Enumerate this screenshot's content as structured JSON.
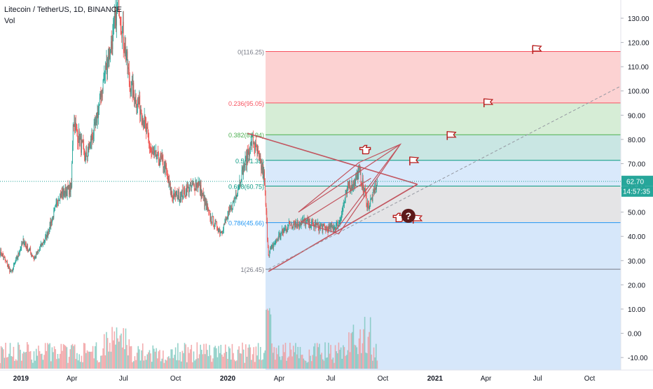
{
  "header": {
    "symbol": "Litecoin / TetherUS, 1D, BINANCE",
    "volume_label": "Vol"
  },
  "price_scale": {
    "ticks": [
      130,
      120,
      110,
      100,
      90,
      80,
      70,
      60,
      50,
      40,
      30,
      20,
      10,
      0,
      -10
    ],
    "tick_labels": [
      "130.00",
      "120.00",
      "110.00",
      "100.00",
      "90.00",
      "80.00",
      "70.00",
      "60.00",
      "50.00",
      "40.00",
      "30.00",
      "20.00",
      "10.00",
      "0.00",
      "-10.00"
    ],
    "last_price": "62.70",
    "countdown": "14:57:35",
    "last_price_color": "#26a69a",
    "countdown_color": "#26a69a"
  },
  "time_scale": {
    "labels": [
      "2019",
      "Apr",
      "Jul",
      "Oct",
      "2020",
      "Apr",
      "Jul",
      "Oct",
      "2021",
      "Apr",
      "Jul",
      "Oct"
    ],
    "bold": [
      true,
      false,
      false,
      false,
      true,
      false,
      false,
      false,
      true,
      false,
      false,
      false
    ]
  },
  "fib": {
    "levels": [
      {
        "ratio": 0,
        "price": 116.25,
        "label": "0(116.25)",
        "line": "#f7525f",
        "label_color": "#787b86"
      },
      {
        "ratio": 0.236,
        "price": 95.05,
        "label": "0.236(95.05)",
        "line": "#f7525f",
        "label_color": "#f7525f"
      },
      {
        "ratio": 0.382,
        "price": 81.94,
        "label": "0.382(81.94)",
        "line": "#4caf50",
        "label_color": "#4caf50"
      },
      {
        "ratio": 0.5,
        "price": 71.35,
        "label": "0.5(71.35)",
        "line": "#089981",
        "label_color": "#089981"
      },
      {
        "ratio": 0.618,
        "price": 60.75,
        "label": "0.618(60.75)",
        "line": "#089981",
        "label_color": "#089981"
      },
      {
        "ratio": 0.786,
        "price": 45.66,
        "label": "0.786(45.66)",
        "line": "#2196f3",
        "label_color": "#2196f3"
      },
      {
        "ratio": 1,
        "price": 26.45,
        "label": "1(26.45)",
        "line": "#787b86",
        "label_color": "#787b86"
      }
    ],
    "zone_colors": [
      "#fcd2d2",
      "#d6edd6",
      "#c9e6e3",
      "#d9e9fb",
      "#e4e4e6",
      "#d6e7fa"
    ]
  },
  "chart_data": {
    "type": "candlestick",
    "title": "Litecoin / TetherUS, 1D, BINANCE",
    "xlabel": "",
    "ylabel": "",
    "ylim": [
      -15,
      137
    ],
    "x_range": [
      "2018-11-25",
      "2021-11-25"
    ],
    "grid": false,
    "price_path": [
      [
        "2018-11-25",
        34
      ],
      [
        "2018-12-15",
        25
      ],
      [
        "2019-01-05",
        38
      ],
      [
        "2019-01-25",
        31
      ],
      [
        "2019-02-15",
        40
      ],
      [
        "2019-03-10",
        57
      ],
      [
        "2019-03-31",
        60
      ],
      [
        "2019-04-03",
        88
      ],
      [
        "2019-04-25",
        72
      ],
      [
        "2019-05-12",
        85
      ],
      [
        "2019-05-31",
        110
      ],
      [
        "2019-06-12",
        122
      ],
      [
        "2019-06-22",
        138
      ],
      [
        "2019-07-02",
        120
      ],
      [
        "2019-07-12",
        103
      ],
      [
        "2019-07-31",
        93
      ],
      [
        "2019-08-20",
        74
      ],
      [
        "2019-09-10",
        70
      ],
      [
        "2019-09-24",
        57
      ],
      [
        "2019-10-10",
        57
      ],
      [
        "2019-10-25",
        60
      ],
      [
        "2019-11-10",
        62
      ],
      [
        "2019-11-30",
        48
      ],
      [
        "2019-12-20",
        42
      ],
      [
        "2020-01-10",
        53
      ],
      [
        "2020-01-31",
        70
      ],
      [
        "2020-02-14",
        80
      ],
      [
        "2020-03-05",
        65
      ],
      [
        "2020-03-13",
        33
      ],
      [
        "2020-03-31",
        40
      ],
      [
        "2020-04-20",
        45
      ],
      [
        "2020-05-15",
        46
      ],
      [
        "2020-06-10",
        44
      ],
      [
        "2020-06-30",
        43
      ],
      [
        "2020-07-15",
        45
      ],
      [
        "2020-07-31",
        60
      ],
      [
        "2020-08-10",
        62
      ],
      [
        "2020-08-20",
        67
      ],
      [
        "2020-09-05",
        52
      ],
      [
        "2020-09-14",
        57
      ],
      [
        "2020-09-21",
        62.7
      ]
    ],
    "last_value": 62.7,
    "volume_max_index": "2020-03-13"
  },
  "drawings": {
    "triangle_upper": [
      [
        "2020-02-05",
        82.5
      ],
      [
        "2020-12-01",
        61.5
      ]
    ],
    "triangle_lower": [
      [
        "2020-03-13",
        25.5
      ],
      [
        "2020-12-01",
        61.5
      ]
    ],
    "pattern": [
      [
        "2020-05-05",
        50
      ],
      [
        "2020-08-20",
        70.5
      ],
      [
        "2020-11-01",
        78
      ],
      [
        "2020-07-15",
        41
      ],
      [
        "2020-05-10",
        46
      ],
      [
        "2020-09-10",
        64
      ]
    ],
    "channel_top": [
      [
        "2020-05-05",
        50
      ],
      [
        "2020-11-01",
        78
      ]
    ],
    "channel_bottom": [
      [
        "2020-07-05",
        41
      ],
      [
        "2020-11-01",
        78
      ]
    ],
    "trend_dashed": [
      [
        "2020-03-13",
        26.5
      ],
      [
        "2021-11-25",
        102
      ]
    ],
    "flag_color": "#b71c1c",
    "flags": [
      [
        "2021-06-30",
        117
      ],
      [
        "2021-04-05",
        95
      ],
      [
        "2021-01-30",
        81.5
      ],
      [
        "2020-11-25",
        71
      ],
      [
        "2020-12-01",
        47
      ]
    ],
    "thumbs": [
      [
        "2020-08-30",
        75.5
      ],
      [
        "2020-10-28",
        47.5
      ]
    ],
    "question": [
      "2020-11-15",
      48.5
    ]
  }
}
